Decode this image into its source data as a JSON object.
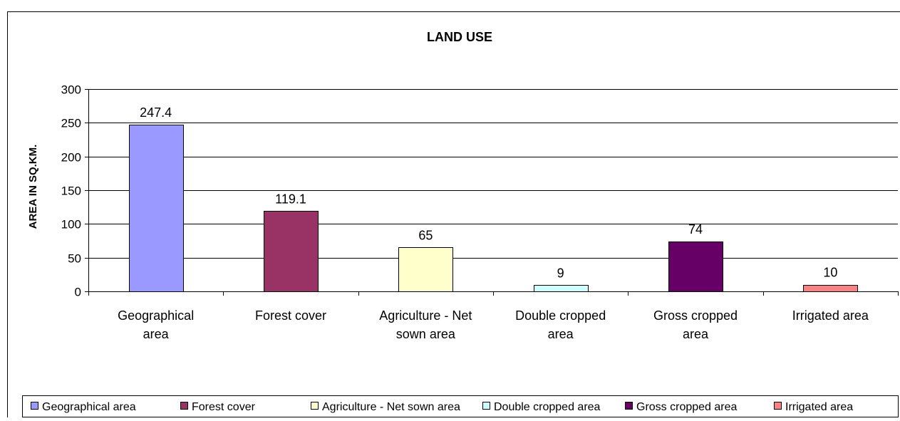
{
  "chart_data": {
    "type": "bar",
    "title": "LAND USE",
    "xlabel": "",
    "ylabel": "AREA IN SQ.KM.",
    "ylim": [
      0,
      300
    ],
    "yticks": [
      0,
      50,
      100,
      150,
      200,
      250,
      300
    ],
    "grid": true,
    "legend_position": "bottom",
    "categories": [
      "Geographical area",
      "Forest cover",
      "Agriculture - Net sown area",
      "Double cropped area",
      "Gross cropped area",
      "Irrigated area"
    ],
    "category_label_lines": [
      [
        "Geographical",
        "area"
      ],
      [
        "Forest cover"
      ],
      [
        "Agriculture - Net",
        "sown area"
      ],
      [
        "Double cropped",
        "area"
      ],
      [
        "Gross cropped",
        "area"
      ],
      [
        "Irrigated area"
      ]
    ],
    "values": [
      247.4,
      119.1,
      65,
      9,
      74,
      10
    ],
    "data_labels": [
      "247.4",
      "119.1",
      "65",
      "9",
      "74",
      "10"
    ],
    "colors": [
      "#9999ff",
      "#993366",
      "#ffffcc",
      "#ccffff",
      "#660066",
      "#ff8080"
    ],
    "legend": [
      "Geographical area",
      "Forest cover",
      "Agriculture - Net sown area",
      "Double cropped area",
      "Gross cropped area",
      "Irrigated area"
    ]
  }
}
